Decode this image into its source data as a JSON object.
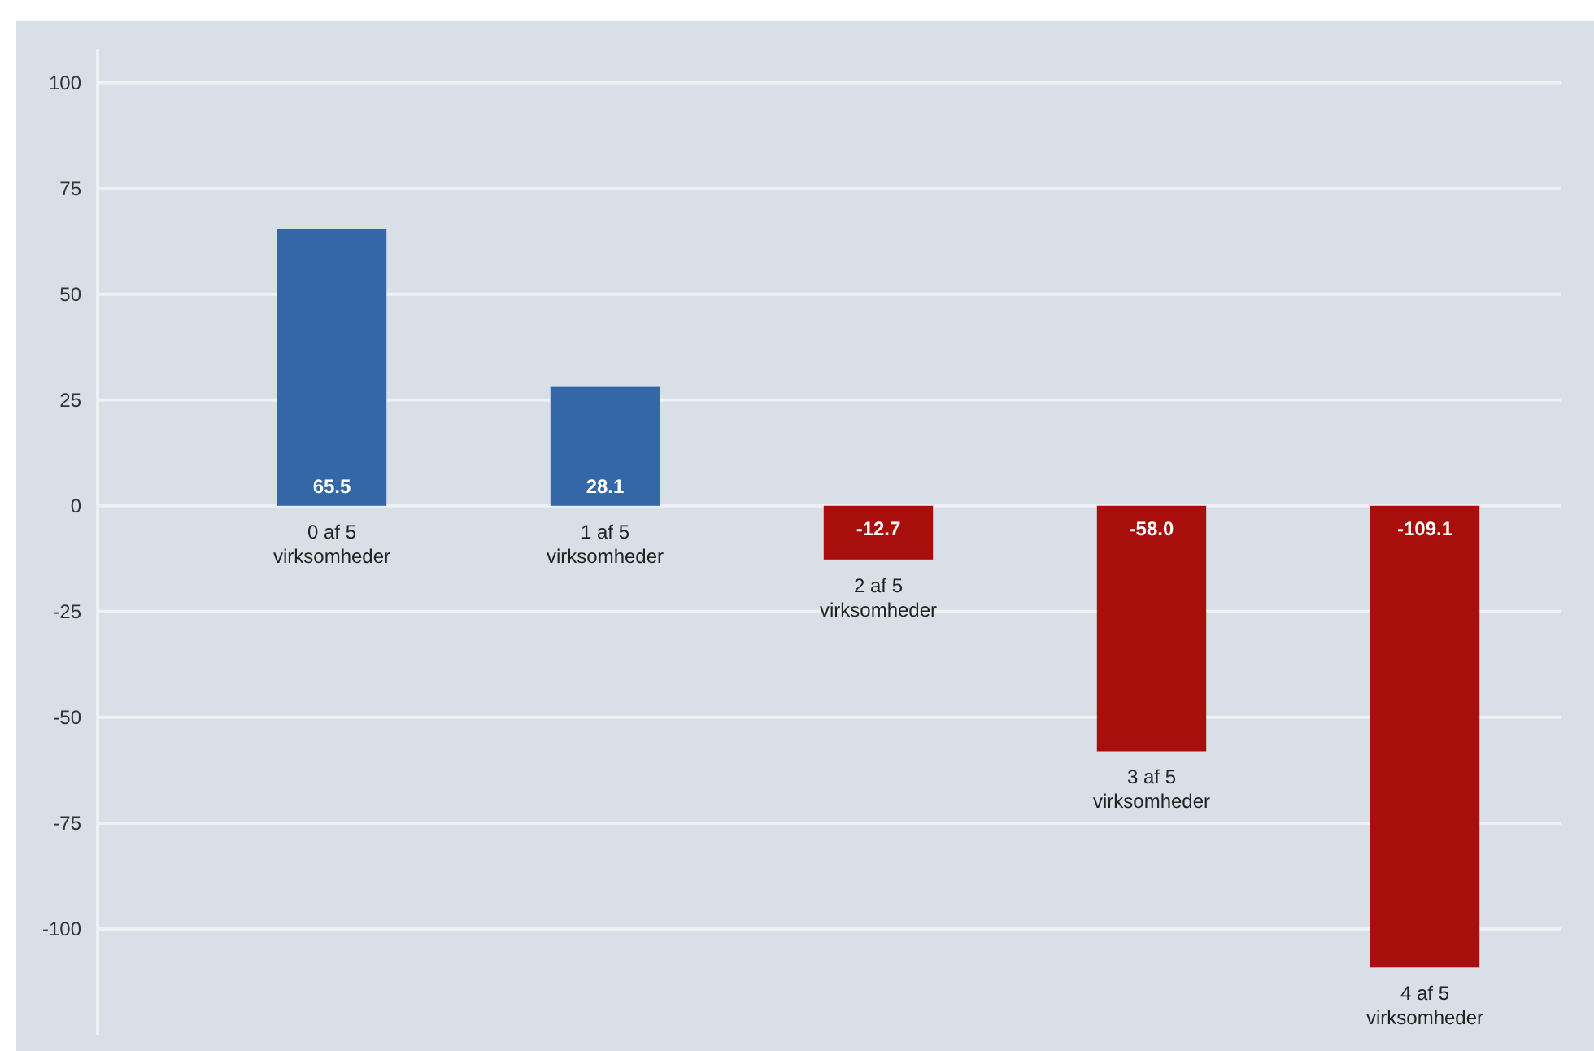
{
  "chart_data": {
    "type": "bar",
    "categories": [
      "0 af 5\nvirksomheder",
      "1 af 5\nvirksomheder",
      "2 af 5\nvirksomheder",
      "3 af 5\nvirksomheder",
      "4 af 5\nvirksomheder"
    ],
    "values": [
      65.5,
      28.1,
      -12.7,
      -58.0,
      -109.1
    ],
    "colors": [
      "#3467a8",
      "#3467a8",
      "#a80e0c",
      "#a80e0c",
      "#a80e0c"
    ],
    "ylim": [
      -125,
      108
    ],
    "yticks": [
      -100,
      -75,
      -50,
      -25,
      0,
      25,
      50,
      75,
      100
    ],
    "value_labels": [
      "65.5",
      "28.1",
      "-12.7",
      "-58.0",
      "-109.1"
    ],
    "grid": "y"
  }
}
